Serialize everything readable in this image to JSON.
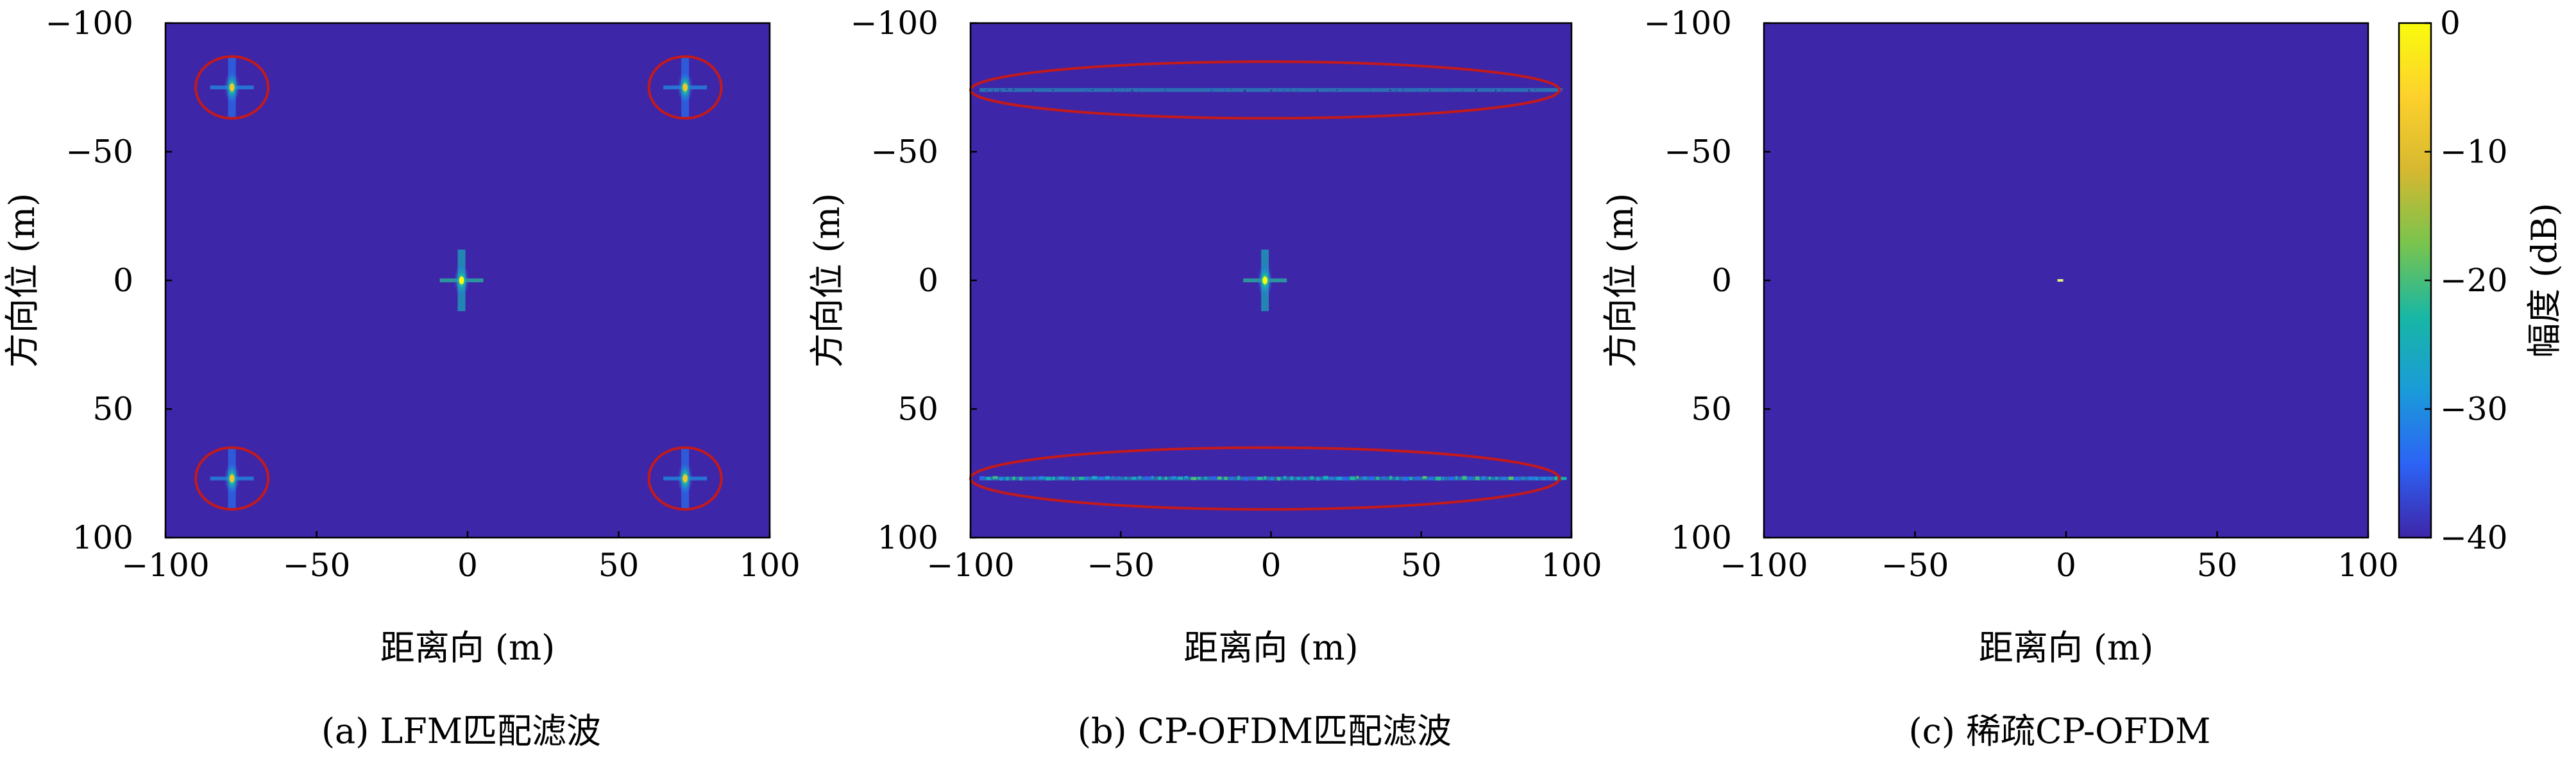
{
  "colors": {
    "background": "#3a32a8",
    "axis": "#000000",
    "ellipse": "#c41a1a",
    "colormap": [
      "#3e26a8",
      "#2c63f5",
      "#1a9bd9",
      "#18b7a5",
      "#79c44d",
      "#d6b830",
      "#fdd12c",
      "#f9fb0e"
    ]
  },
  "colorbar": {
    "label": "幅度 (dB)",
    "ticks": [
      0,
      -10,
      -20,
      -30,
      -40
    ],
    "tick_labels": [
      "0",
      "−10",
      "−20",
      "−30",
      "−40"
    ],
    "range": [
      -40,
      0
    ]
  },
  "chart_data": [
    {
      "type": "heatmap",
      "caption": "(a) LFM匹配滤波",
      "xlabel": "距离向 (m)",
      "ylabel": "方向位 (m)",
      "xlim": [
        -100,
        100
      ],
      "ylim": [
        -100,
        100
      ],
      "x_ticks": [
        -100,
        -50,
        0,
        50,
        100
      ],
      "x_tick_labels": [
        "−100",
        "−50",
        "0",
        "50",
        "100"
      ],
      "y_ticks": [
        -100,
        -50,
        0,
        50,
        100
      ],
      "y_tick_labels": [
        "−100",
        "−50",
        "0",
        "50",
        "100"
      ],
      "background_level_db": -40,
      "points": [
        {
          "x": -2,
          "y": 0,
          "level_db": 0
        },
        {
          "x": -78,
          "y": -75,
          "level_db": -8
        },
        {
          "x": 72,
          "y": -75,
          "level_db": -8
        },
        {
          "x": -78,
          "y": 77,
          "level_db": -8
        },
        {
          "x": 72,
          "y": 77,
          "level_db": -8
        }
      ],
      "streaks": [],
      "highlight_ellipses": [
        {
          "cx": -78,
          "cy": -75,
          "rx": 12,
          "ry": 12
        },
        {
          "cx": 72,
          "cy": -75,
          "rx": 12,
          "ry": 12
        },
        {
          "cx": -78,
          "cy": 77,
          "rx": 12,
          "ry": 12
        },
        {
          "cx": 72,
          "cy": 77,
          "rx": 12,
          "ry": 12
        }
      ]
    },
    {
      "type": "heatmap",
      "caption": "(b) CP-OFDM匹配滤波",
      "xlabel": "距离向 (m)",
      "ylabel": "方向位 (m)",
      "xlim": [
        -100,
        100
      ],
      "ylim": [
        -100,
        100
      ],
      "x_ticks": [
        -100,
        -50,
        0,
        50,
        100
      ],
      "x_tick_labels": [
        "−100",
        "−50",
        "0",
        "50",
        "100"
      ],
      "y_ticks": [
        -100,
        -50,
        0,
        50,
        100
      ],
      "y_tick_labels": [
        "−100",
        "−50",
        "0",
        "50",
        "100"
      ],
      "background_level_db": -40,
      "points": [
        {
          "x": -2,
          "y": 0,
          "level_db": 0
        }
      ],
      "streaks": [
        {
          "y": -74,
          "x_from": -97,
          "x_to": 97,
          "level_db": -25
        },
        {
          "y": 77,
          "x_from": -97,
          "x_to": 97,
          "level_db": -25
        }
      ],
      "highlight_ellipses": [
        {
          "cx": -2,
          "cy": -74,
          "rx": 98,
          "ry": 11
        },
        {
          "cx": -2,
          "cy": 77,
          "rx": 98,
          "ry": 12
        }
      ]
    },
    {
      "type": "heatmap",
      "caption": "(c) 稀疏CP-OFDM",
      "xlabel": "距离向 (m)",
      "ylabel": "方向位 (m)",
      "xlim": [
        -100,
        100
      ],
      "ylim": [
        -100,
        100
      ],
      "x_ticks": [
        -100,
        -50,
        0,
        50,
        100
      ],
      "x_tick_labels": [
        "−100",
        "−50",
        "0",
        "50",
        "100"
      ],
      "y_ticks": [
        -100,
        -50,
        0,
        50,
        100
      ],
      "y_tick_labels": [
        "−100",
        "−50",
        "0",
        "50",
        "100"
      ],
      "background_level_db": -40,
      "points": [
        {
          "x": -2,
          "y": 0,
          "level_db": 0,
          "sparse": true
        }
      ],
      "streaks": [],
      "highlight_ellipses": []
    }
  ]
}
